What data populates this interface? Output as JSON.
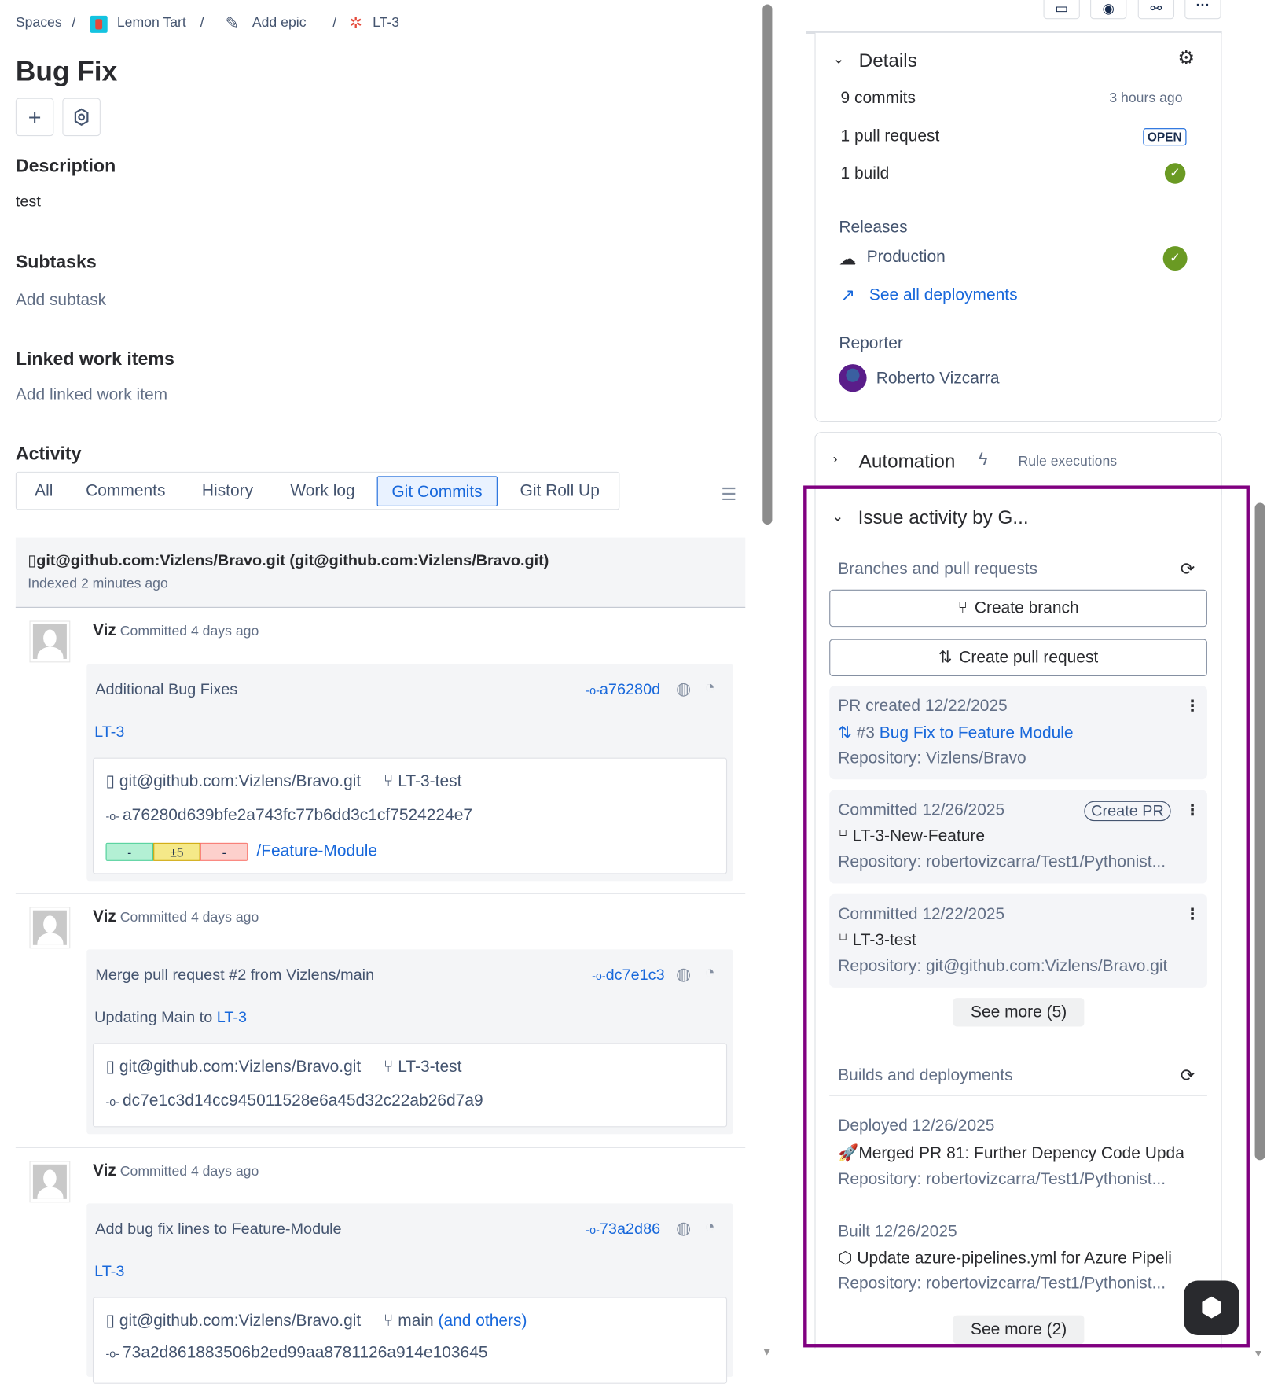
{
  "breadcrumb": {
    "spaces": "Spaces",
    "project": "Lemon Tart",
    "epic": "Add epic",
    "issue": "LT-3"
  },
  "issue": {
    "title": "Bug Fix"
  },
  "description": {
    "heading": "Description",
    "text": "test"
  },
  "subtasks": {
    "heading": "Subtasks",
    "placeholder": "Add subtask"
  },
  "linked": {
    "heading": "Linked work items",
    "placeholder": "Add linked work item"
  },
  "activity": {
    "heading": "Activity",
    "tabs": [
      "All",
      "Comments",
      "History",
      "Work log",
      "Git Commits",
      "Git Roll Up"
    ],
    "active_tab": "Git Commits",
    "repo": {
      "title": "git@github.com:Vizlens/Bravo.git (git@github.com:Vizlens/Bravo.git)",
      "indexed": "Indexed 2 minutes ago"
    },
    "commits": [
      {
        "author": "Viz",
        "when": "Committed 4 days ago",
        "message": "Additional Bug Fixes",
        "link": "LT-3",
        "short": "a76280d",
        "repo": "git@github.com:Vizlens/Bravo.git",
        "branch": "LT-3-test",
        "hash": "a76280d639bfe2a743fc77b6dd3c1cf7524224e7",
        "diff": {
          "added": "-",
          "changed": "±5",
          "removed": "-"
        },
        "path": "/Feature-Module"
      },
      {
        "author": "Viz",
        "when": "Committed 4 days ago",
        "message": "Merge pull request #2 from Vizlens/main",
        "line2_prefix": "Updating Main to ",
        "link": "LT-3",
        "short": "dc7e1c3",
        "repo": "git@github.com:Vizlens/Bravo.git",
        "branch": "LT-3-test",
        "hash": "dc7e1c3d14cc945011528e6a45d32c22ab26d7a9"
      },
      {
        "author": "Viz",
        "when": "Committed 4 days ago",
        "message": "Add bug fix lines to Feature-Module",
        "link": "LT-3",
        "short": "73a2d86",
        "repo": "git@github.com:Vizlens/Bravo.git",
        "branch": "main",
        "branch_more": "(and others)",
        "hash": "73a2d861883506b2ed99aa8781126a914e103645"
      }
    ]
  },
  "details": {
    "title": "Details",
    "commits": "9 commits",
    "commits_time": "3 hours ago",
    "pull_requests": "1 pull request",
    "pr_status": "OPEN",
    "builds": "1 build",
    "releases_label": "Releases",
    "release_env": "Production",
    "see_deployments": "See all deployments",
    "reporter_label": "Reporter",
    "reporter": "Roberto Vizcarra"
  },
  "automation": {
    "title": "Automation",
    "sub": "Rule executions"
  },
  "git_panel": {
    "title": "Issue activity by G...",
    "branches_label": "Branches and pull requests",
    "create_branch": "Create branch",
    "create_pr": "Create pull request",
    "items": [
      {
        "header": "PR created 12/22/2025",
        "prefix": "#3 ",
        "title": "Bug Fix to Feature Module",
        "repo": "Repository: Vizlens/Bravo"
      },
      {
        "header": "Committed 12/26/2025",
        "action": "Create PR",
        "title": "LT-3-New-Feature",
        "repo": "Repository: robertovizcarra/Test1/Pythonist..."
      },
      {
        "header": "Committed 12/22/2025",
        "title": "LT-3-test",
        "repo": "Repository: git@github.com:Vizlens/Bravo.git"
      }
    ],
    "see_more_branches": "See more (5)",
    "builds_label": "Builds and deployments",
    "builds": [
      {
        "header": "Deployed 12/26/2025",
        "title": "Merged PR 81: Further Depency Code Upda",
        "repo": "Repository: robertovizcarra/Test1/Pythonist..."
      },
      {
        "header": "Built 12/26/2025",
        "title": "Update azure-pipelines.yml for Azure Pipeli",
        "repo": "Repository: robertovizcarra/Test1/Pythonist..."
      }
    ],
    "see_more_builds": "See more (2)"
  },
  "colors": {
    "accent": "#1868db",
    "highlight_border": "#800080",
    "success": "#6a9a23",
    "bug": "#e5493a"
  }
}
